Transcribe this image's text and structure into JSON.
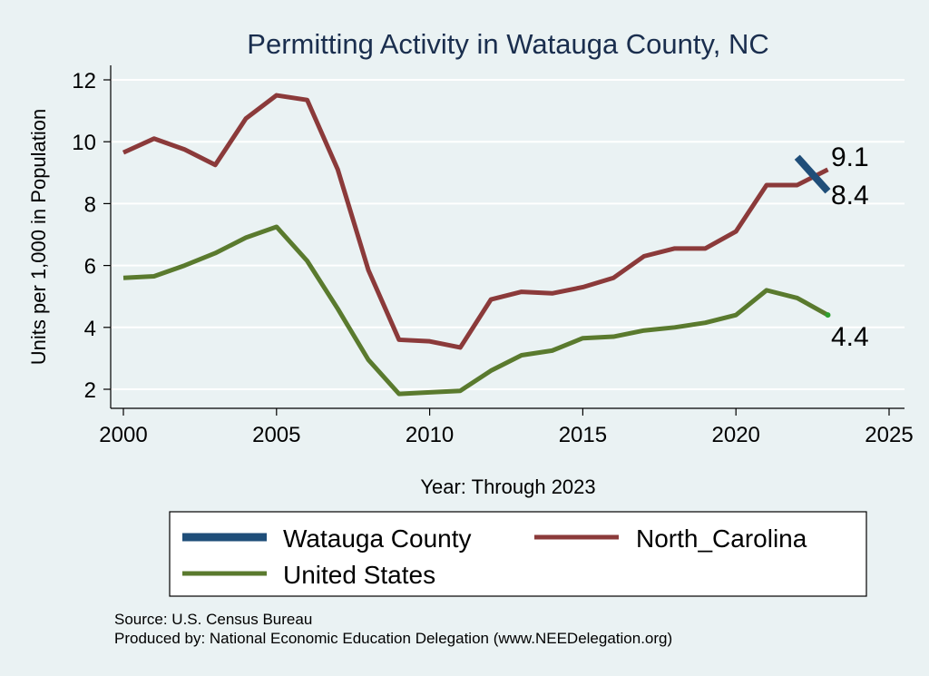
{
  "chart_data": {
    "type": "line",
    "title": "Permitting Activity in Watauga County, NC",
    "xlabel": "Year: Through 2023",
    "ylabel": "Units per 1,000 in Population",
    "xlim": [
      2000,
      2025
    ],
    "ylim": [
      1.5,
      12.5
    ],
    "xticks": [
      2000,
      2005,
      2010,
      2015,
      2020,
      2025
    ],
    "yticks": [
      2,
      4,
      6,
      8,
      10,
      12
    ],
    "grid": true,
    "legend_position": "bottom",
    "series": [
      {
        "name": "Watauga County",
        "color": "#1f4e79",
        "x": [
          2022,
          2023
        ],
        "values": [
          9.5,
          8.4
        ],
        "end_label": "8.4"
      },
      {
        "name": "North_Carolina",
        "color": "#8b3a3a",
        "x": [
          2000,
          2001,
          2002,
          2003,
          2004,
          2005,
          2006,
          2007,
          2008,
          2009,
          2010,
          2011,
          2012,
          2013,
          2014,
          2015,
          2016,
          2017,
          2018,
          2019,
          2020,
          2021,
          2022,
          2023
        ],
        "values": [
          9.65,
          10.1,
          9.75,
          9.25,
          10.75,
          11.5,
          11.35,
          9.1,
          5.85,
          3.6,
          3.55,
          3.35,
          4.9,
          5.15,
          5.1,
          5.3,
          5.6,
          6.3,
          6.55,
          6.55,
          7.1,
          8.6,
          8.6,
          9.1
        ],
        "end_label": "9.1"
      },
      {
        "name": "United States",
        "color": "#5a7a2e",
        "x": [
          2000,
          2001,
          2002,
          2003,
          2004,
          2005,
          2006,
          2007,
          2008,
          2009,
          2010,
          2011,
          2012,
          2013,
          2014,
          2015,
          2016,
          2017,
          2018,
          2019,
          2020,
          2021,
          2022,
          2023
        ],
        "values": [
          5.6,
          5.65,
          6.0,
          6.4,
          6.9,
          7.25,
          6.15,
          4.6,
          2.95,
          1.85,
          1.9,
          1.95,
          2.6,
          3.1,
          3.25,
          3.65,
          3.7,
          3.9,
          4.0,
          4.15,
          4.4,
          5.2,
          4.95,
          4.4
        ],
        "end_label": "4.4"
      }
    ],
    "notes": [
      "Source: U.S. Census Bureau",
      "Produced by: National Economic Education Delegation (www.NEEDelegation.org)"
    ]
  }
}
